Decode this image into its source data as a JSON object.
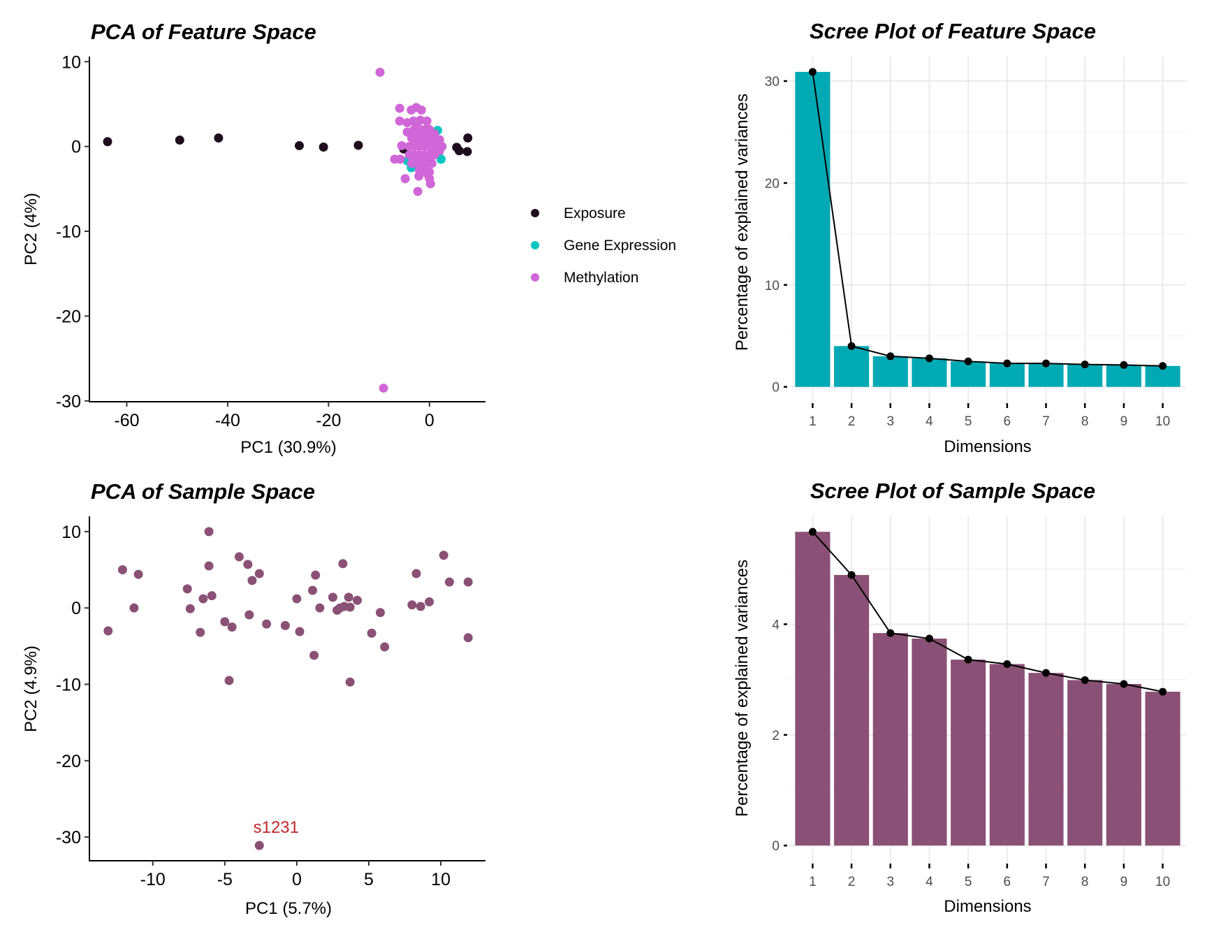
{
  "chart_data": [
    {
      "type": "scatter",
      "title": "PCA of Feature Space",
      "xlabel": "PC1 (30.9%)",
      "ylabel": "PC2 (4%)",
      "xlim": [
        -67.4,
        11.1
      ],
      "ylim": [
        -30.1,
        10.6
      ],
      "xticks": [
        -60,
        -40,
        -20,
        0
      ],
      "yticks": [
        10,
        0,
        -10,
        -20,
        -30
      ],
      "grid": false,
      "legend_position": "right",
      "series": [
        {
          "name": "Exposure",
          "color": "#1f0d1e",
          "points": [
            [
              -63.8,
              0.57
            ],
            [
              -49.5,
              0.75
            ],
            [
              -41.8,
              1.0
            ],
            [
              -25.8,
              0.1
            ],
            [
              -21.0,
              -0.07
            ],
            [
              -14.1,
              0.14
            ],
            [
              -5.1,
              -0.3
            ],
            [
              -4.8,
              -0.2
            ],
            [
              5.4,
              -0.1
            ],
            [
              5.9,
              -0.5
            ],
            [
              7.5,
              -0.6
            ],
            [
              7.6,
              1.0
            ]
          ]
        },
        {
          "name": "Gene Expression",
          "color": "#00c5c0",
          "points": [
            [
              1.6,
              1.9
            ],
            [
              -4.4,
              -1.7
            ],
            [
              -3.6,
              -2.5
            ],
            [
              2.3,
              -1.5
            ],
            [
              1.0,
              0.5
            ],
            [
              -1.0,
              0.3
            ],
            [
              0.0,
              -1.5
            ],
            [
              -2.0,
              1.0
            ],
            [
              1.8,
              -0.8
            ],
            [
              -3.0,
              -1.2
            ]
          ]
        },
        {
          "name": "Methylation",
          "color": "#d066d8",
          "points": [
            [
              -5.9,
              4.5
            ],
            [
              -3.6,
              4.3
            ],
            [
              -2.6,
              4.6
            ],
            [
              -1.6,
              4.3
            ],
            [
              -5.9,
              3.0
            ],
            [
              -4.4,
              2.8
            ],
            [
              -3.2,
              3.0
            ],
            [
              -1.8,
              3.1
            ],
            [
              -0.5,
              3.0
            ],
            [
              -4.4,
              1.7
            ],
            [
              -5.5,
              0.1
            ],
            [
              -6.9,
              -1.5
            ],
            [
              -5.8,
              -1.5
            ],
            [
              -4.8,
              -3.8
            ],
            [
              -2.1,
              -3.5
            ],
            [
              0.0,
              -3.8
            ],
            [
              0.2,
              -4.4
            ],
            [
              -2.3,
              -5.3
            ],
            [
              -9.8,
              8.75
            ],
            [
              -9.1,
              -28.5
            ],
            [
              -3,
              2
            ],
            [
              -2,
              2
            ],
            [
              -1,
              2
            ],
            [
              0,
              2
            ],
            [
              1,
              1.5
            ],
            [
              -3.5,
              1
            ],
            [
              -2.5,
              1
            ],
            [
              -1.5,
              1
            ],
            [
              -0.5,
              1
            ],
            [
              0.5,
              1
            ],
            [
              1.5,
              0.5
            ],
            [
              2.5,
              0
            ],
            [
              -4,
              0
            ],
            [
              -3,
              0
            ],
            [
              -2,
              0
            ],
            [
              -1,
              0
            ],
            [
              0,
              0
            ],
            [
              1,
              0
            ],
            [
              2,
              -0.5
            ],
            [
              -4,
              -1
            ],
            [
              -3,
              -1
            ],
            [
              -2,
              -1
            ],
            [
              -1,
              -1
            ],
            [
              0,
              -1
            ],
            [
              1,
              -1
            ],
            [
              -3.5,
              -2
            ],
            [
              -2.5,
              -2
            ],
            [
              -1.5,
              -2
            ],
            [
              -0.5,
              -2
            ],
            [
              0.5,
              -2
            ],
            [
              -2,
              -2.8
            ],
            [
              -1,
              -2.8
            ],
            [
              0,
              -3
            ],
            [
              -1,
              1.5
            ],
            [
              -2.5,
              2.5
            ],
            [
              0.5,
              -0.5
            ],
            [
              2,
              0.8
            ],
            [
              -0.3,
              -3.3
            ]
          ]
        }
      ]
    },
    {
      "type": "bar",
      "title": "Scree Plot of Feature Space",
      "xlabel": "Dimensions",
      "ylabel": "Percentage of explained variances",
      "categories": [
        "1",
        "2",
        "3",
        "4",
        "5",
        "6",
        "7",
        "8",
        "9",
        "10"
      ],
      "values": [
        30.9,
        4.0,
        3.0,
        2.8,
        2.5,
        2.3,
        2.3,
        2.2,
        2.15,
        2.05
      ],
      "line_overlay": true,
      "yticks": [
        0,
        10,
        20,
        30
      ],
      "ylim": [
        0,
        32.4
      ],
      "grid": true,
      "bar_color": "#00a9b3",
      "line_color": "#000000"
    },
    {
      "type": "scatter",
      "title": "PCA of Sample Space",
      "xlabel": "PC1 (5.7%)",
      "ylabel": "PC2 (4.9%)",
      "xlim": [
        -14.4,
        13.1
      ],
      "ylim": [
        -33.1,
        12.0
      ],
      "xticks": [
        -10,
        -5,
        0,
        5,
        10
      ],
      "yticks": [
        10,
        0,
        -10,
        -20,
        -30
      ],
      "grid": false,
      "color": "#8b5075",
      "points": [
        [
          -13.1,
          -3.0
        ],
        [
          -12.1,
          5.0
        ],
        [
          -11.3,
          0.0
        ],
        [
          -11.0,
          4.4
        ],
        [
          -7.6,
          2.5
        ],
        [
          -7.4,
          -0.1
        ],
        [
          -6.7,
          -3.2
        ],
        [
          -6.5,
          1.2
        ],
        [
          -6.1,
          5.5
        ],
        [
          -6.1,
          10.0
        ],
        [
          -5.9,
          1.6
        ],
        [
          -5.0,
          -1.8
        ],
        [
          -4.7,
          -9.5
        ],
        [
          -4.5,
          -2.5
        ],
        [
          -4.0,
          6.7
        ],
        [
          -3.4,
          5.7
        ],
        [
          -3.3,
          -0.9
        ],
        [
          -3.1,
          3.6
        ],
        [
          -2.6,
          4.5
        ],
        [
          -2.1,
          -2.1
        ],
        [
          -2.6,
          -31.1
        ],
        [
          -0.8,
          -2.3
        ],
        [
          0.0,
          1.2
        ],
        [
          0.2,
          -3.1
        ],
        [
          1.1,
          2.3
        ],
        [
          1.2,
          -6.2
        ],
        [
          1.3,
          4.3
        ],
        [
          1.6,
          0.0
        ],
        [
          2.5,
          1.4
        ],
        [
          2.8,
          -0.3
        ],
        [
          3.0,
          0.0
        ],
        [
          3.2,
          5.8
        ],
        [
          3.3,
          0.2
        ],
        [
          3.6,
          1.4
        ],
        [
          3.7,
          0.1
        ],
        [
          3.7,
          -9.7
        ],
        [
          4.2,
          1.0
        ],
        [
          5.2,
          -3.3
        ],
        [
          5.8,
          -0.6
        ],
        [
          6.1,
          -5.1
        ],
        [
          8.0,
          0.4
        ],
        [
          8.3,
          4.5
        ],
        [
          8.6,
          0.2
        ],
        [
          9.2,
          0.8
        ],
        [
          10.2,
          6.9
        ],
        [
          10.6,
          3.4
        ],
        [
          11.9,
          3.4
        ],
        [
          11.9,
          -3.9
        ]
      ],
      "annotations": [
        {
          "text": "s1231",
          "x": -2.6,
          "y": -31.1,
          "color": "#c0282d"
        }
      ]
    },
    {
      "type": "bar",
      "title": "Scree Plot of Sample Space",
      "xlabel": "Dimensions",
      "ylabel": "Percentage of explained variances",
      "categories": [
        "1",
        "2",
        "3",
        "4",
        "5",
        "6",
        "7",
        "8",
        "9",
        "10"
      ],
      "values": [
        5.67,
        4.89,
        3.84,
        3.74,
        3.36,
        3.28,
        3.12,
        2.99,
        2.92,
        2.78
      ],
      "line_overlay": true,
      "yticks": [
        0,
        2,
        4
      ],
      "ylim": [
        0,
        5.95
      ],
      "grid": true,
      "bar_color": "#8b5075",
      "line_color": "#000000"
    }
  ]
}
